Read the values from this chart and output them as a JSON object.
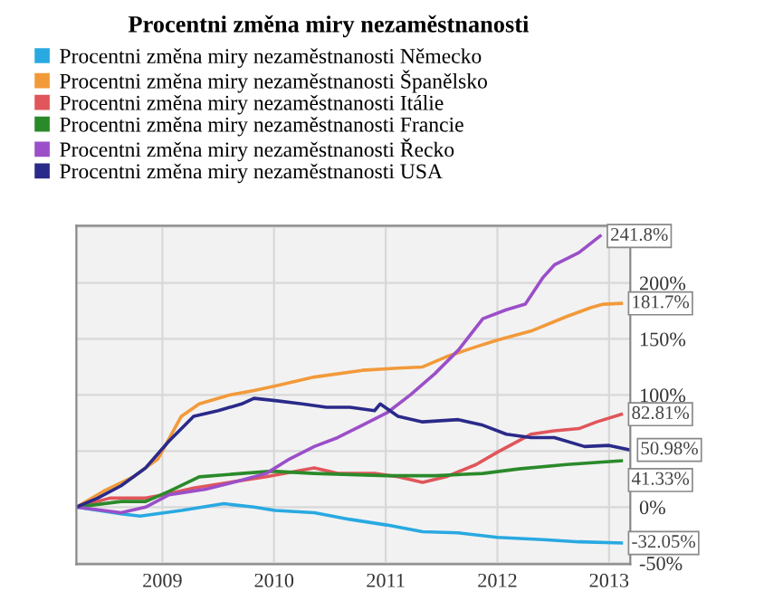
{
  "chart_data": {
    "type": "line",
    "title": "Procentni změna miry nezaměstnanosti",
    "series": [
      {
        "name": "Procentni změna miry nezaměstnanosti Německo",
        "color": "#29a9e1",
        "x": [
          2008.23,
          2008.63,
          2008.8,
          2009.17,
          2009.55,
          2009.82,
          2010.01,
          2010.36,
          2010.68,
          2011.01,
          2011.33,
          2011.65,
          2012.0,
          2012.41,
          2012.73,
          2013.11
        ],
        "values": [
          0,
          -6,
          -8,
          -3,
          3,
          0,
          -3,
          -5,
          -11,
          -16,
          -22,
          -23,
          -27,
          -29,
          -31,
          -32.05
        ]
      },
      {
        "name": "Procentni změna miry nezaměstnanosti Španělsko",
        "color": "#f29a3a",
        "x": [
          2008.23,
          2008.47,
          2008.74,
          2008.96,
          2009.17,
          2009.33,
          2009.6,
          2009.82,
          2010.01,
          2010.36,
          2010.79,
          2011.11,
          2011.33,
          2011.54,
          2011.81,
          2012.0,
          2012.3,
          2012.62,
          2012.84,
          2012.95,
          2013.11
        ],
        "values": [
          0,
          14,
          27,
          43,
          81,
          92,
          100,
          104,
          108,
          116,
          122,
          124,
          125,
          134,
          143,
          149,
          157,
          170,
          178,
          181,
          181.7
        ]
      },
      {
        "name": "Procentni změna miry nezaměstnanosti Itálie",
        "color": "#e0565b",
        "x": [
          2008.23,
          2008.53,
          2008.85,
          2009.01,
          2009.28,
          2009.6,
          2009.93,
          2010.36,
          2010.57,
          2010.9,
          2011.11,
          2011.33,
          2011.54,
          2011.81,
          2012.0,
          2012.19,
          2012.3,
          2012.51,
          2012.73,
          2012.89,
          2013.11
        ],
        "values": [
          0,
          8,
          8,
          11,
          17,
          22,
          27,
          35,
          30,
          30,
          27,
          22,
          27,
          38,
          49,
          59,
          65,
          68,
          70,
          76,
          82.81
        ]
      },
      {
        "name": "Procentni změna miry nezaměstnanosti Francie",
        "color": "#2a8a2a",
        "x": [
          2008.23,
          2008.63,
          2008.85,
          2009.06,
          2009.33,
          2009.71,
          2009.98,
          2010.36,
          2011.01,
          2011.44,
          2011.87,
          2012.19,
          2012.62,
          2013.11
        ],
        "values": [
          0,
          5,
          5,
          14,
          27,
          30,
          32,
          30,
          28,
          28,
          30,
          34,
          38,
          41.33
        ]
      },
      {
        "name": "Procentni změna miry nezaměstnanosti Řecko",
        "color": "#9b4fc8",
        "x": [
          2008.23,
          2008.63,
          2008.85,
          2009.06,
          2009.39,
          2009.71,
          2009.93,
          2010.14,
          2010.36,
          2010.57,
          2010.79,
          2011.01,
          2011.22,
          2011.44,
          2011.65,
          2011.87,
          2012.08,
          2012.25,
          2012.41,
          2012.51,
          2012.73,
          2012.92
        ],
        "values": [
          0,
          -5,
          0,
          11,
          16,
          24,
          30,
          43,
          54,
          62,
          73,
          84,
          100,
          119,
          140,
          168,
          176,
          181,
          205,
          216,
          227,
          241.8
        ]
      },
      {
        "name": "Procentni změna miry nezaměstnanosti USA",
        "color": "#2a2a8a",
        "x": [
          2008.23,
          2008.42,
          2008.63,
          2008.85,
          2009.06,
          2009.28,
          2009.5,
          2009.71,
          2009.82,
          2010.01,
          2010.25,
          2010.47,
          2010.68,
          2010.9,
          2010.95,
          2011.11,
          2011.33,
          2011.65,
          2011.87,
          2012.08,
          2012.3,
          2012.51,
          2012.78,
          2013.0,
          2013.19
        ],
        "values": [
          0,
          8,
          19,
          35,
          59,
          81,
          86,
          92,
          97,
          95,
          92,
          89,
          89,
          86,
          92,
          81,
          76,
          78,
          73,
          65,
          62,
          62,
          54,
          55,
          50.98
        ]
      }
    ],
    "annotations": [
      {
        "text": "241.8%",
        "x": 2012.92,
        "y": 241.8
      },
      {
        "text": "181.7%",
        "x": 2013.11,
        "y": 181.7
      },
      {
        "text": "82.81%",
        "x": 2013.11,
        "y": 82.81
      },
      {
        "text": "50.98%",
        "x": 2013.19,
        "y": 50.98
      },
      {
        "text": "41.33%",
        "x": 2013.11,
        "y": 41.33
      },
      {
        "text": "-32.05%",
        "x": 2013.11,
        "y": -32.05
      }
    ],
    "xlim": [
      2008.23,
      2013.19
    ],
    "xticks": [
      2009,
      2010,
      2011,
      2012,
      2013
    ],
    "ylim": [
      -51,
      251
    ],
    "yticks": [
      {
        "value": -50,
        "label": "-50%"
      },
      {
        "value": 0,
        "label": "0%"
      },
      {
        "value": 50,
        "label": null
      },
      {
        "value": 100,
        "label": "100%"
      },
      {
        "value": 150,
        "label": "150%"
      },
      {
        "value": 200,
        "label": "200%"
      },
      {
        "value": 250,
        "label": null
      }
    ],
    "grid": true,
    "legend": "top",
    "marker": "none",
    "line_style": "solid"
  }
}
